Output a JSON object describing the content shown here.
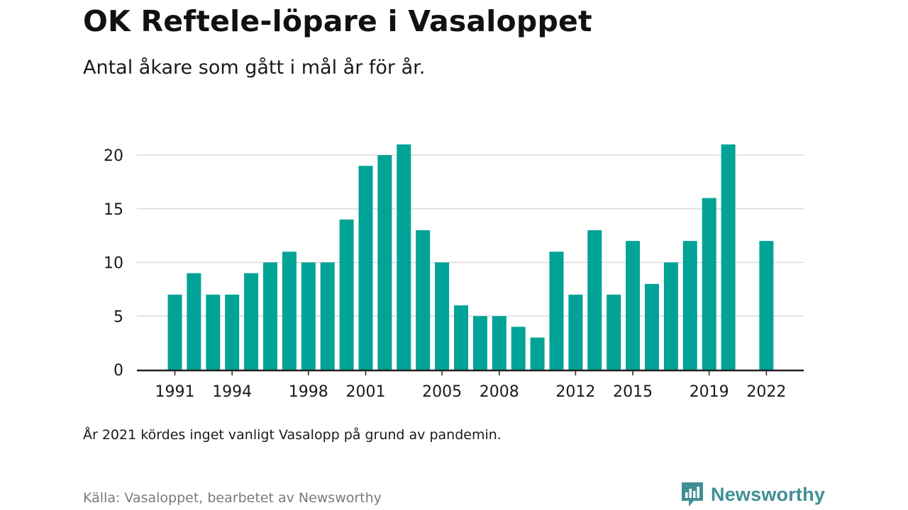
{
  "header": {
    "title": "OK Reftele-löpare i Vasaloppet",
    "subtitle": "Antal åkare som gått i mål år för år."
  },
  "footer": {
    "note": "År 2021 kördes inget vanligt Vasalopp på grund av pandemin.",
    "source": "Källa: Vasaloppet, bearbetet av Newsworthy",
    "brand": "Newsworthy"
  },
  "colors": {
    "bar": "#00a396",
    "grid": "#d9d9d9",
    "axis": "#222222",
    "brand": "#3f8f95"
  },
  "chart_data": {
    "type": "bar",
    "categories": [
      1991,
      1992,
      1993,
      1994,
      1995,
      1996,
      1997,
      1998,
      1999,
      2000,
      2001,
      2002,
      2003,
      2004,
      2005,
      2006,
      2007,
      2008,
      2009,
      2010,
      2011,
      2012,
      2013,
      2014,
      2015,
      2016,
      2017,
      2018,
      2019,
      2020,
      2021,
      2022
    ],
    "values": [
      7,
      9,
      7,
      7,
      9,
      10,
      11,
      10,
      10,
      14,
      19,
      20,
      21,
      13,
      10,
      6,
      5,
      5,
      4,
      3,
      11,
      7,
      13,
      7,
      12,
      8,
      10,
      12,
      16,
      21,
      null,
      12
    ],
    "x_tick_labels": [
      "1991",
      "1994",
      "1998",
      "2001",
      "2005",
      "2008",
      "2012",
      "2015",
      "2019",
      "2022"
    ],
    "y_ticks": [
      0,
      5,
      10,
      15,
      20
    ],
    "ylim": [
      0,
      21
    ],
    "xlabel": "",
    "ylabel": "",
    "grid": true
  }
}
